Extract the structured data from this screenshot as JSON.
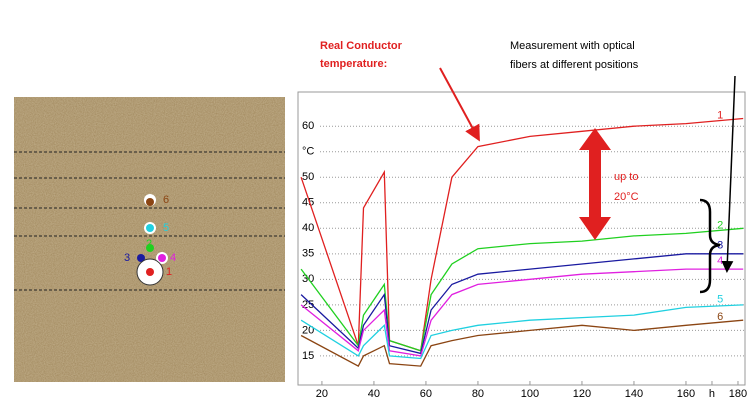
{
  "chart_data": {
    "type": "line",
    "x": [
      12,
      34,
      36,
      44,
      46,
      58,
      62,
      70,
      80,
      100,
      120,
      140,
      160,
      182
    ],
    "series": [
      {
        "name": "1",
        "color": "#e02020",
        "values": [
          50,
          17,
          44,
          51,
          18,
          16,
          30,
          50,
          56,
          58,
          59,
          60,
          60.5,
          61.5
        ]
      },
      {
        "name": "2",
        "color": "#20d020",
        "values": [
          32,
          17,
          23,
          29,
          18,
          16,
          27,
          33,
          36,
          37,
          37.5,
          38.5,
          39,
          40
        ]
      },
      {
        "name": "3",
        "color": "#1a1aa0",
        "values": [
          27,
          16.5,
          21,
          27,
          17,
          15.5,
          24,
          29,
          31,
          32,
          33,
          34,
          35,
          35
        ]
      },
      {
        "name": "4",
        "color": "#e020e0",
        "values": [
          25,
          16,
          20,
          24,
          16,
          15,
          22,
          27,
          29,
          30,
          31,
          31.5,
          32,
          32
        ]
      },
      {
        "name": "5",
        "color": "#20d0e0",
        "values": [
          22,
          15,
          17,
          21,
          15,
          14.5,
          19,
          20,
          21,
          22,
          22.5,
          23,
          24.5,
          25
        ]
      },
      {
        "name": "6",
        "color": "#8b4513",
        "values": [
          19,
          13,
          15,
          17,
          13.5,
          13,
          17,
          18,
          19,
          20,
          21,
          20,
          21,
          22
        ]
      }
    ],
    "xlim": [
      10.8,
      182.7
    ],
    "ylim": [
      9.3,
      66.7
    ],
    "xticks": [
      20,
      40,
      60,
      80,
      100,
      120,
      140,
      160,
      {
        "value": 170,
        "label": "h"
      },
      180
    ],
    "yticks": [
      15,
      20,
      25,
      30,
      35,
      40,
      45,
      50,
      {
        "value": 55,
        "label": "°C"
      },
      60
    ],
    "grid": true,
    "annotations": [
      {
        "lines": [
          "Real Conductor",
          "temperature:"
        ]
      },
      {
        "lines": [
          "Measurement with optical",
          "fibers at different positions"
        ]
      },
      {
        "lines": [
          "up to",
          "20°C"
        ]
      }
    ]
  }
}
